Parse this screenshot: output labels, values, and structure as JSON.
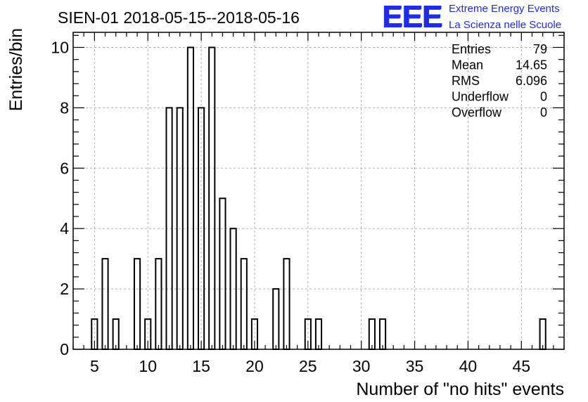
{
  "chart_data": {
    "type": "bar",
    "title": "SIEN-01 2018-05-15--2018-05-16",
    "xlabel": "Number of \"no hits\" events",
    "ylabel": "Entries/bin",
    "xlim": [
      3,
      49
    ],
    "ylim": [
      0,
      10.5
    ],
    "grid": true,
    "bin_width": 1,
    "x_ticks": [
      5,
      10,
      15,
      20,
      25,
      30,
      35,
      40,
      45
    ],
    "y_ticks": [
      0,
      2,
      4,
      6,
      8,
      10
    ],
    "bins": [
      {
        "x": 5,
        "count": 1
      },
      {
        "x": 6,
        "count": 3
      },
      {
        "x": 7,
        "count": 1
      },
      {
        "x": 8,
        "count": 0
      },
      {
        "x": 9,
        "count": 3
      },
      {
        "x": 10,
        "count": 1
      },
      {
        "x": 11,
        "count": 3
      },
      {
        "x": 12,
        "count": 8
      },
      {
        "x": 13,
        "count": 8
      },
      {
        "x": 14,
        "count": 10
      },
      {
        "x": 15,
        "count": 8
      },
      {
        "x": 16,
        "count": 10
      },
      {
        "x": 17,
        "count": 5
      },
      {
        "x": 18,
        "count": 4
      },
      {
        "x": 19,
        "count": 3
      },
      {
        "x": 20,
        "count": 1
      },
      {
        "x": 22,
        "count": 2
      },
      {
        "x": 23,
        "count": 3
      },
      {
        "x": 25,
        "count": 1
      },
      {
        "x": 26,
        "count": 1
      },
      {
        "x": 31,
        "count": 1
      },
      {
        "x": 32,
        "count": 1
      },
      {
        "x": 47,
        "count": 1
      }
    ],
    "stats": [
      {
        "label": "Entries",
        "value": "79"
      },
      {
        "label": "Mean",
        "value": "14.65"
      },
      {
        "label": "RMS",
        "value": "6.096"
      },
      {
        "label": "Underflow",
        "value": "0"
      },
      {
        "label": "Overflow",
        "value": "0"
      }
    ]
  },
  "logo": {
    "mark": "EEE",
    "line1": "Extreme Energy Events",
    "line2": "La Scienza nelle Scuole",
    "color": "#1f2de6"
  }
}
